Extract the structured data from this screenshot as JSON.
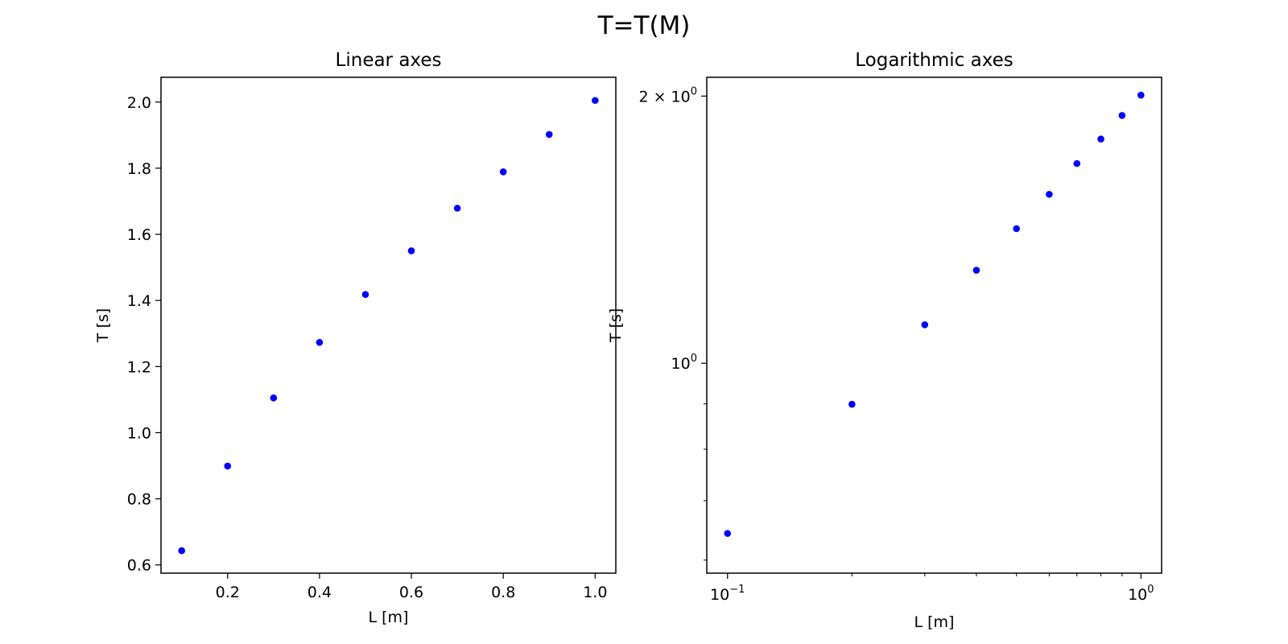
{
  "figure": {
    "suptitle": "T=T(M)"
  },
  "colors": {
    "marker": "#0000ff",
    "axes": "#000000",
    "background": "#ffffff"
  },
  "chart_data": [
    {
      "type": "scatter",
      "title": "Linear axes",
      "xlabel": "L [m]",
      "ylabel": "T [s]",
      "xscale": "linear",
      "yscale": "linear",
      "xlim": [
        0.055,
        1.045
      ],
      "ylim": [
        0.575,
        2.075
      ],
      "xticks": [
        0.2,
        0.4,
        0.6,
        0.8,
        1.0
      ],
      "xtick_labels": [
        "0.2",
        "0.4",
        "0.6",
        "0.8",
        "1.0"
      ],
      "yticks": [
        0.6,
        0.8,
        1.0,
        1.2,
        1.4,
        1.6,
        1.8,
        2.0
      ],
      "ytick_labels": [
        "0.6",
        "0.8",
        "1.0",
        "1.2",
        "1.4",
        "1.6",
        "1.8",
        "2.0"
      ],
      "grid": false,
      "series": [
        {
          "x": [
            0.1,
            0.2,
            0.3,
            0.4,
            0.5,
            0.6,
            0.7,
            0.8,
            0.9,
            1.0
          ],
          "y": [
            0.643,
            0.899,
            1.105,
            1.273,
            1.418,
            1.55,
            1.679,
            1.789,
            1.902,
            2.005
          ]
        }
      ]
    },
    {
      "type": "scatter",
      "title": "Logarithmic axes",
      "xlabel": "L [m]",
      "ylabel": "T [s]",
      "xscale": "log",
      "yscale": "log",
      "xlim": [
        0.0891,
        1.122
      ],
      "ylim": [
        0.58,
        2.1
      ],
      "major_xticks": [
        0.1,
        1.0
      ],
      "major_xtick_labels": [
        {
          "base": "10",
          "exp": "−1"
        },
        {
          "base": "10",
          "exp": "0"
        }
      ],
      "minor_xticks": [
        0.2,
        0.3,
        0.4,
        0.5,
        0.6,
        0.7,
        0.8,
        0.9
      ],
      "major_yticks": [
        1.0,
        2.0
      ],
      "major_ytick_labels": [
        {
          "prefix": "",
          "base": "10",
          "exp": "0"
        },
        {
          "prefix": "2 × ",
          "base": "10",
          "exp": "0"
        }
      ],
      "minor_yticks": [
        0.6,
        0.7,
        0.8,
        0.9,
        3.0
      ],
      "grid": false,
      "series": [
        {
          "x": [
            0.1,
            0.2,
            0.3,
            0.4,
            0.5,
            0.6,
            0.7,
            0.8,
            0.9,
            1.0
          ],
          "y": [
            0.643,
            0.899,
            1.105,
            1.273,
            1.418,
            1.55,
            1.679,
            1.789,
            1.902,
            2.005
          ]
        }
      ]
    }
  ]
}
